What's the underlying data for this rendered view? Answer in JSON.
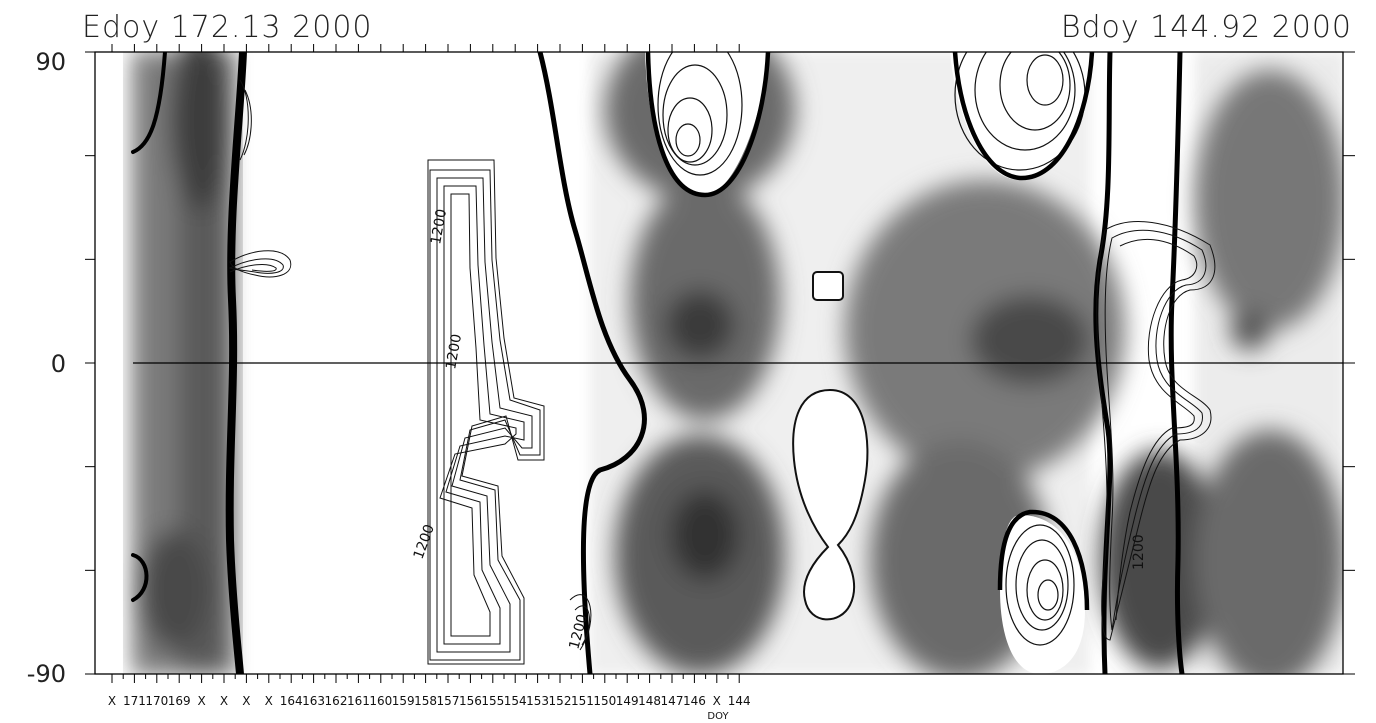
{
  "chart_data": {
    "type": "heatmap",
    "title_left": "Edoy 172.13 2000",
    "title_right": "Bdoy 144.92 2000",
    "xlabel": "DOY",
    "ylabel": "",
    "ylim": [
      -90,
      90
    ],
    "yticks": [
      "90",
      "0",
      "-90"
    ],
    "xticks": [
      "X",
      "171",
      "170",
      "169",
      "X",
      "X",
      "X",
      "X",
      "164",
      "163",
      "162",
      "161",
      "160",
      "159",
      "158",
      "157",
      "156",
      "155",
      "154",
      "153",
      "152",
      "151",
      "150",
      "149",
      "148",
      "147",
      "146",
      "X",
      "144"
    ],
    "contour_labels": [
      "1200",
      "1200",
      "1200",
      "1200",
      "1200"
    ],
    "grid": false,
    "colormap": "grayscale"
  }
}
